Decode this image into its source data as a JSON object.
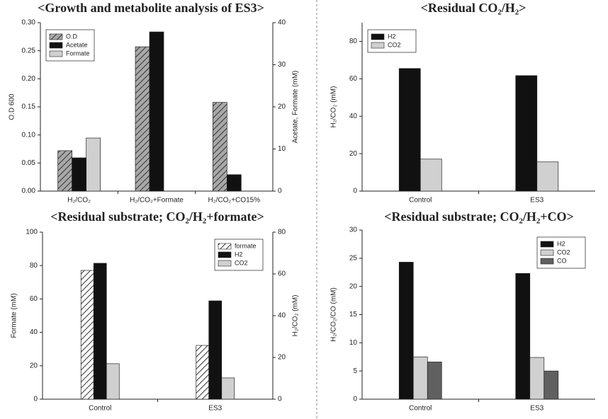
{
  "chart_data": [
    {
      "type": "bar",
      "title": "<Growth and metabolite analysis of ES3>",
      "categories": [
        "H₂/CO₂",
        "H₂/CO₂+Formate",
        "H₂/CO₂+CO15%"
      ],
      "ylabel": "O.D 600",
      "y2label": "Acetate, Formate (mM)",
      "ylim": [
        0,
        0.3
      ],
      "yticks": [
        {
          "value": 0,
          "label": "0.00"
        },
        0.05,
        {
          "value": 0.1,
          "label": "0.10"
        },
        0.15,
        {
          "value": 0.2,
          "label": "0.20"
        },
        0.25,
        {
          "value": 0.3,
          "label": "0.30"
        }
      ],
      "y2lim": [
        0,
        40
      ],
      "y2ticks": [
        0,
        10,
        20,
        30,
        40
      ],
      "legend": "upper left",
      "series": [
        {
          "name": "O.D",
          "color": "#a8a8a8",
          "hatch": true,
          "values": [
            0.072,
            0.257,
            0.158
          ]
        },
        {
          "name": "Acetate",
          "color": "#111111",
          "axis": "y2",
          "values": [
            7.9,
            37.8,
            3.9
          ]
        },
        {
          "name": "Formate",
          "color": "#d0d0d0",
          "axis": "y2",
          "values": [
            12.6,
            null,
            null
          ]
        }
      ]
    },
    {
      "type": "bar",
      "title": "<Residual CO₂/H₂>",
      "categories": [
        "Control",
        "ES3"
      ],
      "ylabel": "H₂/CO₂ (mM)",
      "ylim": [
        0,
        90
      ],
      "yticks": [
        0,
        20,
        40,
        60,
        80
      ],
      "legend": "upper left",
      "series": [
        {
          "name": "H2",
          "color": "#111111",
          "values": [
            65.5,
            61.7
          ]
        },
        {
          "name": "CO2",
          "color": "#d0d0d0",
          "values": [
            17.1,
            15.6
          ]
        }
      ]
    },
    {
      "type": "bar",
      "title": "<Residual substrate; CO₂/H₂+formate>",
      "categories": [
        "Control",
        "ES3"
      ],
      "ylabel": "Formate (mM)",
      "y2label": "H₂/CO₂ (mM)",
      "ylim": [
        0,
        100
      ],
      "yticks": [
        0,
        20,
        40,
        60,
        80,
        100
      ],
      "y2lim": [
        0,
        80
      ],
      "y2ticks": [
        0,
        20,
        40,
        60,
        80
      ],
      "legend": "upper right",
      "series": [
        {
          "name": "formate",
          "color": "#ffffff",
          "hatch": true,
          "values": [
            77.1,
            32.2
          ]
        },
        {
          "name": "H2",
          "color": "#111111",
          "axis": "y2",
          "values": [
            65.1,
            47.1
          ]
        },
        {
          "name": "CO2",
          "color": "#d0d0d0",
          "axis": "y2",
          "values": [
            17.0,
            10.2
          ]
        }
      ]
    },
    {
      "type": "bar",
      "title": "<Residual substrate; CO₂/H₂+CO>",
      "categories": [
        "Control",
        "ES3"
      ],
      "ylabel": "H₂/CO₂/CO (mM)",
      "ylim": [
        0,
        30
      ],
      "yticks": [
        0,
        5,
        10,
        15,
        20,
        25,
        30
      ],
      "legend": "upper right",
      "series": [
        {
          "name": "H2",
          "color": "#111111",
          "values": [
            24.3,
            22.3
          ]
        },
        {
          "name": "CO2",
          "color": "#d0d0d0",
          "values": [
            7.5,
            7.4
          ]
        },
        {
          "name": "CO",
          "color": "#606060",
          "values": [
            6.6,
            5.0
          ]
        }
      ]
    }
  ]
}
